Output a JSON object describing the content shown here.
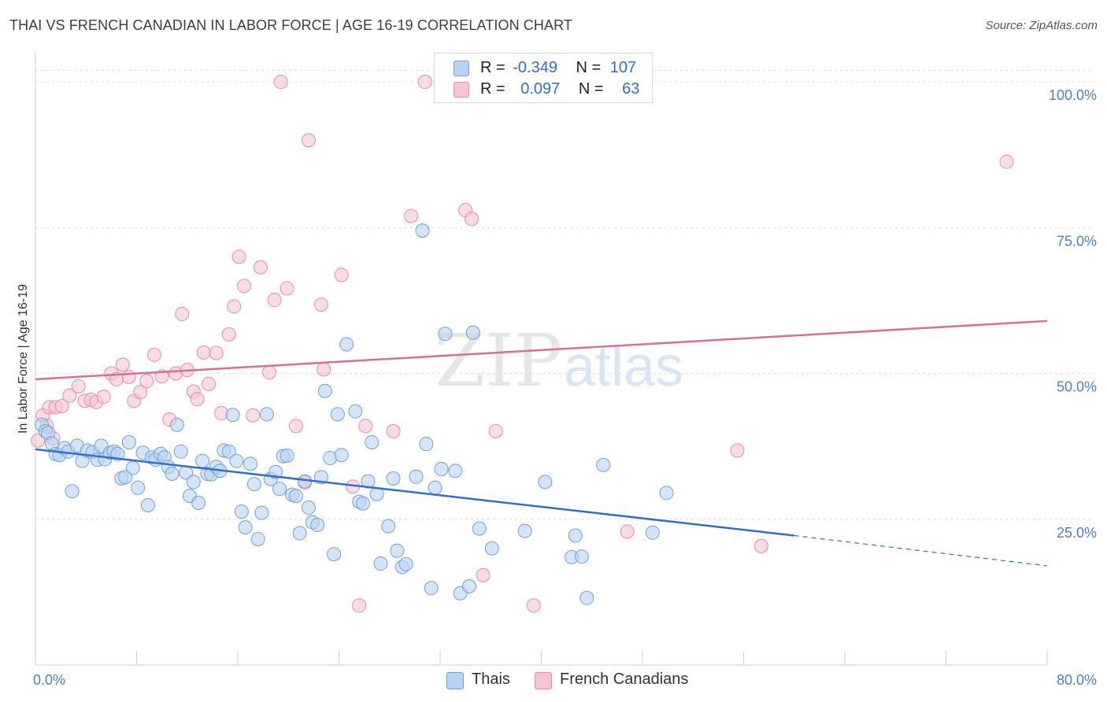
{
  "title": "THAI VS FRENCH CANADIAN IN LABOR FORCE | AGE 16-19 CORRELATION CHART",
  "source": "Source: ZipAtlas.com",
  "watermark": {
    "zip": "ZIP",
    "atlas": "atlas"
  },
  "legend": {
    "rows": [
      {
        "r_label": "R =",
        "r_value": "-0.349",
        "n_label": "N =",
        "n_value": "107",
        "color": "#b9d3f4"
      },
      {
        "r_label": "R =",
        "r_value": "0.097",
        "n_label": "N =",
        "n_value": "63",
        "color": "#f7c4d3"
      }
    ]
  },
  "bottom_legend": [
    "Thais",
    "French Canadians"
  ],
  "colors": {
    "thai_fill": "#b9d3f4",
    "thai_stroke": "#6f9fdd",
    "thai_line": "#2e6fd0",
    "fc_fill": "#f7c4d3",
    "fc_stroke": "#e88aa8",
    "fc_line": "#e06b93",
    "grid": "#d9d9d9",
    "tick_label": "#4a7fd0"
  },
  "chart_data": {
    "type": "scatter",
    "title": "THAI VS FRENCH CANADIAN IN LABOR FORCE | AGE 16-19 CORRELATION CHART",
    "xlabel": "",
    "ylabel": "In Labor Force | Age 16-19",
    "xlim": [
      0,
      80
    ],
    "ylim": [
      0,
      105
    ],
    "x_tick_labels": [
      "0.0%",
      "80.0%"
    ],
    "y_ticks": [
      25,
      50,
      75,
      100
    ],
    "y_tick_labels": [
      "25.0%",
      "50.0%",
      "75.0%",
      "100.0%"
    ],
    "grid": true,
    "legend_position": "top-center",
    "series": [
      {
        "name": "Thais",
        "points": [
          [
            0.5,
            41.2
          ],
          [
            0.8,
            40.1
          ],
          [
            1.0,
            39.8
          ],
          [
            1.3,
            38.0
          ],
          [
            1.6,
            36.2
          ],
          [
            1.9,
            36.0
          ],
          [
            2.3,
            37.2
          ],
          [
            2.6,
            36.6
          ],
          [
            2.9,
            29.8
          ],
          [
            3.3,
            37.6
          ],
          [
            3.7,
            35.0
          ],
          [
            4.1,
            36.8
          ],
          [
            4.5,
            36.5
          ],
          [
            4.9,
            35.2
          ],
          [
            5.2,
            37.6
          ],
          [
            5.5,
            35.3
          ],
          [
            5.9,
            36.4
          ],
          [
            6.2,
            36.6
          ],
          [
            6.5,
            36.2
          ],
          [
            6.8,
            32.0
          ],
          [
            7.1,
            32.2
          ],
          [
            7.4,
            38.2
          ],
          [
            7.7,
            33.8
          ],
          [
            8.1,
            30.4
          ],
          [
            8.5,
            36.4
          ],
          [
            8.9,
            27.4
          ],
          [
            9.2,
            35.6
          ],
          [
            9.5,
            35.2
          ],
          [
            9.9,
            36.2
          ],
          [
            10.2,
            35.6
          ],
          [
            10.5,
            34.0
          ],
          [
            10.8,
            32.8
          ],
          [
            11.2,
            41.2
          ],
          [
            11.5,
            36.6
          ],
          [
            11.9,
            33.0
          ],
          [
            12.2,
            29.0
          ],
          [
            12.5,
            31.4
          ],
          [
            12.9,
            27.8
          ],
          [
            13.2,
            35.0
          ],
          [
            13.6,
            32.8
          ],
          [
            13.9,
            32.7
          ],
          [
            14.3,
            34.0
          ],
          [
            14.6,
            33.3
          ],
          [
            14.9,
            36.8
          ],
          [
            15.3,
            36.6
          ],
          [
            15.6,
            42.9
          ],
          [
            15.9,
            35.0
          ],
          [
            16.3,
            26.3
          ],
          [
            16.6,
            23.6
          ],
          [
            17.0,
            34.5
          ],
          [
            17.3,
            31.0
          ],
          [
            17.6,
            21.6
          ],
          [
            17.9,
            26.1
          ],
          [
            18.3,
            43.0
          ],
          [
            18.6,
            31.9
          ],
          [
            19.0,
            33.1
          ],
          [
            19.3,
            30.2
          ],
          [
            19.6,
            35.8
          ],
          [
            19.9,
            35.9
          ],
          [
            20.3,
            29.2
          ],
          [
            20.6,
            29.0
          ],
          [
            20.9,
            22.6
          ],
          [
            21.3,
            31.5
          ],
          [
            21.6,
            27.0
          ],
          [
            21.9,
            24.5
          ],
          [
            22.3,
            24.0
          ],
          [
            22.6,
            32.2
          ],
          [
            22.9,
            47.0
          ],
          [
            23.3,
            35.5
          ],
          [
            23.6,
            19.0
          ],
          [
            23.9,
            43.0
          ],
          [
            24.2,
            36.0
          ],
          [
            24.6,
            55.0
          ],
          [
            25.3,
            43.5
          ],
          [
            25.6,
            28.0
          ],
          [
            25.9,
            27.7
          ],
          [
            26.3,
            31.5
          ],
          [
            26.6,
            38.2
          ],
          [
            27.0,
            29.3
          ],
          [
            27.3,
            17.4
          ],
          [
            27.9,
            23.8
          ],
          [
            28.3,
            32.0
          ],
          [
            28.6,
            19.6
          ],
          [
            29.0,
            16.8
          ],
          [
            29.3,
            17.3
          ],
          [
            30.1,
            32.3
          ],
          [
            30.6,
            74.5
          ],
          [
            30.9,
            37.9
          ],
          [
            31.3,
            13.2
          ],
          [
            31.6,
            30.4
          ],
          [
            32.1,
            33.6
          ],
          [
            32.4,
            56.8
          ],
          [
            33.2,
            33.3
          ],
          [
            33.6,
            12.3
          ],
          [
            34.3,
            13.5
          ],
          [
            34.6,
            57.0
          ],
          [
            35.1,
            23.4
          ],
          [
            36.1,
            20.0
          ],
          [
            38.7,
            23.0
          ],
          [
            40.3,
            31.4
          ],
          [
            42.4,
            18.5
          ],
          [
            42.7,
            22.2
          ],
          [
            43.2,
            18.6
          ],
          [
            43.6,
            11.5
          ],
          [
            48.8,
            22.7
          ],
          [
            49.9,
            29.5
          ],
          [
            44.9,
            34.3
          ]
        ]
      },
      {
        "name": "French Canadians",
        "points": [
          [
            0.2,
            38.5
          ],
          [
            0.6,
            42.8
          ],
          [
            1.1,
            44.2
          ],
          [
            1.6,
            44.2
          ],
          [
            2.1,
            44.4
          ],
          [
            2.7,
            46.2
          ],
          [
            3.4,
            47.8
          ],
          [
            3.9,
            45.3
          ],
          [
            4.4,
            45.5
          ],
          [
            4.8,
            45.1
          ],
          [
            5.4,
            46.0
          ],
          [
            6.0,
            50.0
          ],
          [
            6.4,
            49.0
          ],
          [
            6.9,
            51.5
          ],
          [
            7.4,
            49.4
          ],
          [
            7.8,
            45.3
          ],
          [
            8.3,
            46.8
          ],
          [
            8.8,
            48.7
          ],
          [
            9.4,
            53.2
          ],
          [
            10.0,
            49.5
          ],
          [
            10.6,
            42.1
          ],
          [
            11.1,
            50.0
          ],
          [
            11.6,
            60.2
          ],
          [
            12.0,
            50.6
          ],
          [
            12.5,
            46.9
          ],
          [
            12.8,
            45.6
          ],
          [
            13.3,
            53.6
          ],
          [
            13.7,
            48.2
          ],
          [
            14.3,
            53.5
          ],
          [
            14.7,
            43.2
          ],
          [
            15.3,
            56.7
          ],
          [
            15.7,
            61.5
          ],
          [
            16.1,
            70.0
          ],
          [
            16.5,
            65.0
          ],
          [
            17.2,
            42.8
          ],
          [
            17.8,
            68.2
          ],
          [
            18.5,
            50.2
          ],
          [
            18.9,
            62.6
          ],
          [
            19.4,
            100.0
          ],
          [
            19.9,
            64.6
          ],
          [
            20.6,
            41.0
          ],
          [
            21.3,
            31.3
          ],
          [
            21.6,
            90.0
          ],
          [
            22.8,
            50.7
          ],
          [
            22.6,
            61.8
          ],
          [
            24.2,
            66.9
          ],
          [
            25.1,
            30.6
          ],
          [
            25.6,
            10.2
          ],
          [
            26.1,
            41.0
          ],
          [
            28.3,
            40.1
          ],
          [
            29.7,
            77.0
          ],
          [
            30.8,
            100.0
          ],
          [
            34.0,
            78.0
          ],
          [
            34.5,
            76.5
          ],
          [
            35.4,
            15.4
          ],
          [
            36.4,
            40.1
          ],
          [
            39.4,
            10.2
          ],
          [
            46.8,
            22.9
          ],
          [
            55.5,
            36.8
          ],
          [
            57.4,
            20.4
          ],
          [
            76.8,
            86.3
          ],
          [
            0.9,
            41.0
          ],
          [
            1.4,
            38.9
          ]
        ]
      }
    ],
    "trendlines": [
      {
        "series": "Thais",
        "from": [
          0,
          37.0
        ],
        "to": [
          60,
          22.2
        ],
        "dashed_to": [
          80,
          17.0
        ]
      },
      {
        "series": "French Canadians",
        "from": [
          0,
          49.0
        ],
        "to": [
          80,
          59.0
        ]
      }
    ]
  }
}
